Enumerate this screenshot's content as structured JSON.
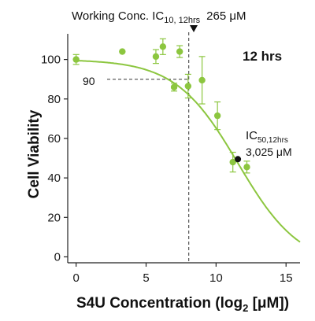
{
  "chart_data": {
    "type": "scatter",
    "xlabel": "S4U Concentration (log",
    "xlabel_sub": "2",
    "xlabel_tail": " [μM])",
    "ylabel": "Cell Viability",
    "panel_label": "12 hrs",
    "xlim": [
      -0.6,
      16
    ],
    "ylim": [
      -3,
      113
    ],
    "x_ticks": [
      0,
      5,
      10,
      15
    ],
    "y_ticks": [
      0,
      20,
      40,
      60,
      80,
      100
    ],
    "point_color": "#8cc63f",
    "curve_color": "#8cc63f",
    "series": [
      {
        "x": [
          0,
          3.3,
          5.7,
          6.2,
          7,
          7.4,
          8,
          9,
          10.1,
          11.2,
          12.2
        ],
        "y": [
          100,
          104,
          101.5,
          106.5,
          86,
          104,
          86.5,
          89.5,
          71.5,
          48,
          45.5
        ],
        "err": [
          2.5,
          0,
          3.5,
          4,
          2,
          3,
          6,
          12,
          7,
          5,
          3
        ]
      }
    ],
    "fit_curve": {
      "top": 100,
      "bottom": -5,
      "ic50_log2": 11.56,
      "hill_slope": 0.3
    },
    "working_conc": {
      "label_prefix": "Working Conc. IC",
      "label_sub": "10, 12hrs",
      "label_value": "265 μM",
      "x": 8.05,
      "y": 90,
      "y_label": "90"
    },
    "ic50": {
      "label_prefix": "IC",
      "label_sub": "50,12hrs",
      "label_value": "3,025 μM",
      "x": 11.56,
      "y": 49.5
    }
  }
}
